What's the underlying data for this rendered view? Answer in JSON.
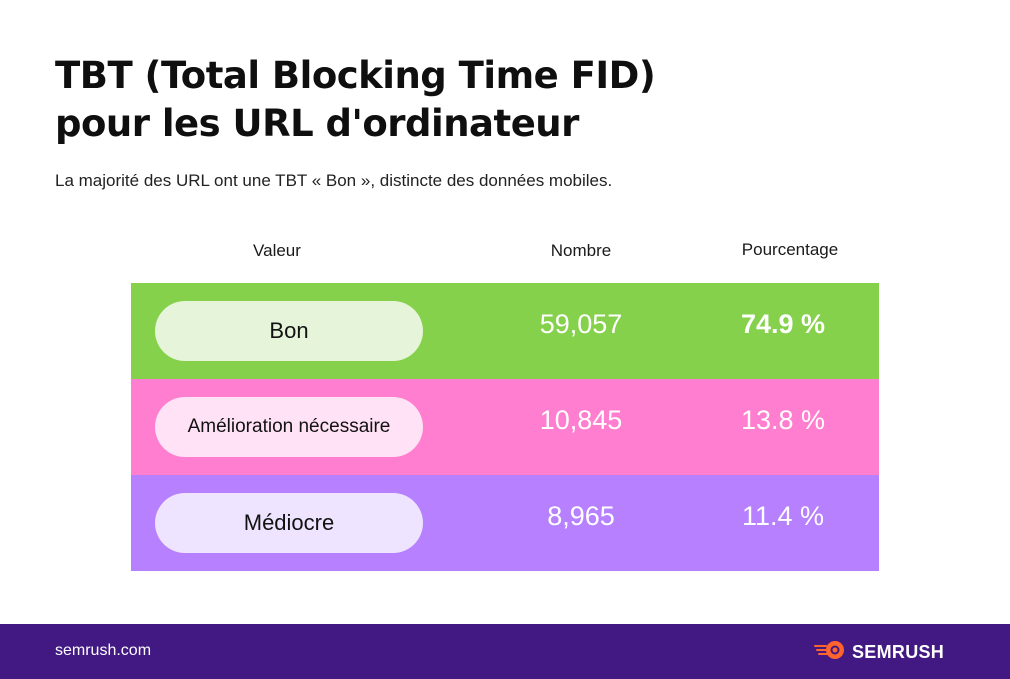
{
  "title_line1": "TBT (Total Blocking Time FID)",
  "title_line2": "pour les URL d'ordinateur",
  "subtitle": "La majorité des URL ont une TBT « Bon », distincte des données mobiles.",
  "columns": {
    "valeur": "Valeur",
    "nombre": "Nombre",
    "pourcentage": "Pourcentage"
  },
  "rows": [
    {
      "label": "Bon",
      "count": "59,057",
      "percent": "74.9 %",
      "row_color": "#85d14b",
      "pill_color": "#e6f5da"
    },
    {
      "label": "Amélioration nécessaire",
      "count": "10,845",
      "percent": "13.8 %",
      "row_color": "#ff7ecf",
      "pill_color": "#ffe2f5"
    },
    {
      "label": "Médiocre",
      "count": "8,965",
      "percent": "11.4 %",
      "row_color": "#b680ff",
      "pill_color": "#efe4ff"
    }
  ],
  "footer": {
    "site": "semrush.com",
    "brand": "SEMRUSH",
    "brand_icon": "semrush-fireball-icon",
    "background": "#421983",
    "accent": "#ff642d"
  }
}
